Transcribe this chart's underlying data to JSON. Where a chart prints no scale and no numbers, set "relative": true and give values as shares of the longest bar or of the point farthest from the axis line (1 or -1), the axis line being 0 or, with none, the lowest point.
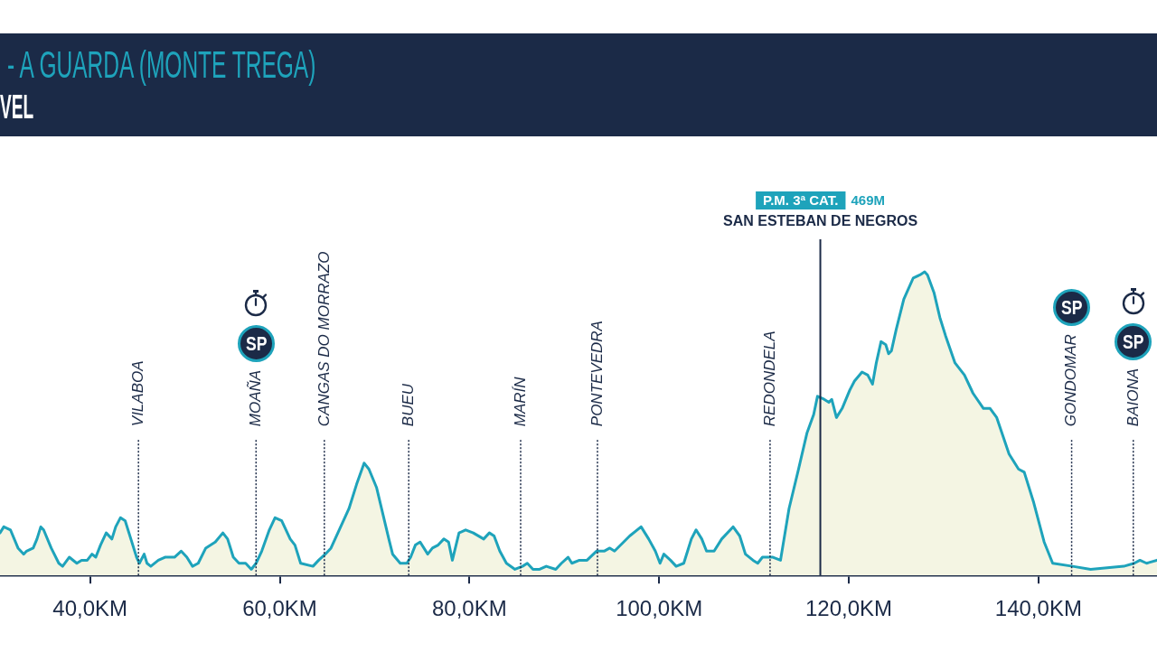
{
  "chart_data": {
    "type": "area",
    "title": "- A GUARDA (MONTE TREGA)",
    "subtitle": "VEL",
    "relative": true,
    "color": "#1ea3bb",
    "x": [
      30.5,
      30.9,
      31.6,
      32.4,
      33.0,
      33.3,
      34.0,
      34.4,
      34.8,
      35.1,
      35.9,
      36.7,
      37.1,
      37.8,
      38.6,
      39.1,
      39.7,
      40.2,
      40.6,
      41.1,
      41.7,
      42.3,
      42.7,
      43.2,
      43.7,
      44.3,
      44.9,
      45.2,
      45.7,
      46.0,
      46.4,
      47.2,
      47.9,
      48.9,
      49.6,
      50.2,
      50.8,
      51.4,
      52.2,
      53.2,
      54.0,
      54.5,
      55.1,
      55.7,
      56.4,
      57.0,
      57.5,
      58.1,
      58.9,
      59.5,
      60.2,
      61.1,
      61.6,
      62.2,
      63.5,
      64.1,
      64.8,
      65.4,
      67.3,
      68.1,
      68.9,
      69.4,
      70.2,
      71.5,
      71.9,
      72.7,
      73.4,
      73.8,
      74.3,
      74.8,
      75.6,
      76.1,
      76.7,
      77.3,
      77.8,
      78.2,
      78.9,
      79.6,
      80.4,
      81.5,
      82.1,
      82.6,
      83.2,
      83.9,
      84.8,
      85.6,
      86.1,
      86.7,
      87.4,
      88.1,
      89.1,
      89.7,
      90.4,
      90.8,
      91.6,
      92.4,
      93.4,
      94.2,
      94.8,
      95.3,
      96.9,
      98.1,
      98.9,
      99.6,
      100.1,
      100.5,
      101.2,
      101.8,
      102.6,
      103.4,
      103.9,
      104.5,
      105.0,
      105.8,
      106.6,
      107.8,
      108.5,
      109.1,
      109.9,
      110.4,
      110.9,
      111.3,
      112.0,
      112.8,
      113.7,
      114.7,
      115.6,
      116.3,
      116.7,
      117.4,
      117.9,
      118.2,
      118.7,
      119.3,
      120.1,
      120.6,
      121.4,
      122.0,
      122.5,
      122.9,
      123.4,
      123.9,
      124.2,
      124.5,
      125.0,
      125.8,
      126.8,
      127.5,
      128.0,
      128.3,
      129.0,
      129.6,
      130.2,
      131.2,
      132.2,
      133.1,
      134.2,
      134.9,
      135.6,
      136.9,
      137.9,
      138.5,
      139.5,
      140.6,
      141.5,
      143.6,
      145.5,
      149.0,
      150.1,
      150.7,
      151.4,
      152.5
    ],
    "values": [
      0.14,
      0.16,
      0.15,
      0.09,
      0.07,
      0.08,
      0.09,
      0.12,
      0.16,
      0.15,
      0.09,
      0.04,
      0.03,
      0.06,
      0.04,
      0.05,
      0.05,
      0.07,
      0.06,
      0.1,
      0.14,
      0.12,
      0.16,
      0.19,
      0.18,
      0.12,
      0.06,
      0.04,
      0.07,
      0.04,
      0.03,
      0.05,
      0.06,
      0.06,
      0.08,
      0.06,
      0.03,
      0.04,
      0.09,
      0.11,
      0.14,
      0.12,
      0.06,
      0.04,
      0.04,
      0.02,
      0.04,
      0.08,
      0.15,
      0.19,
      0.18,
      0.12,
      0.1,
      0.04,
      0.03,
      0.05,
      0.07,
      0.09,
      0.22,
      0.3,
      0.37,
      0.35,
      0.29,
      0.12,
      0.07,
      0.04,
      0.04,
      0.06,
      0.1,
      0.11,
      0.07,
      0.09,
      0.1,
      0.12,
      0.11,
      0.05,
      0.14,
      0.15,
      0.14,
      0.12,
      0.14,
      0.13,
      0.08,
      0.04,
      0.02,
      0.03,
      0.04,
      0.02,
      0.02,
      0.03,
      0.02,
      0.04,
      0.06,
      0.04,
      0.05,
      0.05,
      0.08,
      0.08,
      0.09,
      0.08,
      0.13,
      0.16,
      0.12,
      0.08,
      0.04,
      0.07,
      0.05,
      0.03,
      0.04,
      0.12,
      0.15,
      0.12,
      0.08,
      0.08,
      0.12,
      0.16,
      0.13,
      0.07,
      0.05,
      0.04,
      0.06,
      0.06,
      0.06,
      0.05,
      0.22,
      0.35,
      0.47,
      0.53,
      0.59,
      0.58,
      0.57,
      0.58,
      0.52,
      0.55,
      0.61,
      0.64,
      0.67,
      0.66,
      0.63,
      0.7,
      0.77,
      0.76,
      0.73,
      0.74,
      0.81,
      0.91,
      0.98,
      0.99,
      1,
      0.99,
      0.93,
      0.85,
      0.79,
      0.7,
      0.66,
      0.6,
      0.55,
      0.55,
      0.52,
      0.4,
      0.35,
      0.34,
      0.24,
      0.11,
      0.04,
      0.03,
      0.02,
      0.03,
      0.04,
      0.05,
      0.04,
      0.05
    ],
    "xlim": [
      30.5,
      152.5
    ],
    "xticks": [
      {
        "value": 40,
        "label": "40,0KM"
      },
      {
        "value": 60,
        "label": "60,0KM"
      },
      {
        "value": 80,
        "label": "80,0KM"
      },
      {
        "value": 100,
        "label": "100,0KM"
      },
      {
        "value": 120,
        "label": "120,0KM"
      },
      {
        "value": 140,
        "label": "140,0KM"
      }
    ],
    "ref_lines": [
      {
        "axis": "x",
        "value": 45.1,
        "label": "VILABOA",
        "line_style": "dotted",
        "color": "#1b2a47"
      },
      {
        "axis": "x",
        "value": 57.5,
        "label": "MOAÑA",
        "line_style": "dotted",
        "color": "#1b2a47"
      },
      {
        "axis": "x",
        "value": 64.7,
        "label": "CANGAS DO MORRAZO",
        "line_style": "dotted",
        "color": "#1b2a47"
      },
      {
        "axis": "x",
        "value": 73.6,
        "label": "BUEU",
        "line_style": "dotted",
        "color": "#1b2a47"
      },
      {
        "axis": "x",
        "value": 85.4,
        "label": "MARÍN",
        "line_style": "dotted",
        "color": "#1b2a47"
      },
      {
        "axis": "x",
        "value": 93.5,
        "label": "PONTEVEDRA",
        "line_style": "dotted",
        "color": "#1b2a47"
      },
      {
        "axis": "x",
        "value": 111.7,
        "label": "REDONDELA",
        "line_style": "dotted",
        "color": "#1b2a47"
      },
      {
        "axis": "x",
        "value": 117.0,
        "label": "SAN ESTEBAN DE NEGROS",
        "line_style": "solid",
        "color": "#1b2a47"
      },
      {
        "axis": "x",
        "value": 143.5,
        "label": "GONDOMAR",
        "line_style": "dotted",
        "color": "#1b2a47"
      },
      {
        "axis": "x",
        "value": 150.0,
        "label": "BAIONA",
        "line_style": "dotted",
        "color": "#1b2a47"
      }
    ],
    "annotations": [
      "P.M. 3ª CAT.",
      "469M",
      {
        "text": "SP",
        "x": 57.5
      },
      {
        "text": "SP",
        "x": 143.5
      },
      {
        "text": "SP",
        "x": 150.0
      }
    ]
  }
}
